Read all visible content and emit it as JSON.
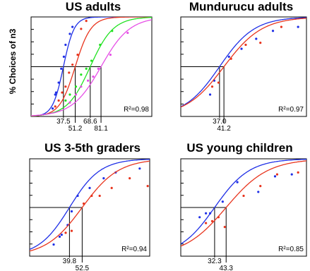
{
  "figure": {
    "ylabel": "% Choices of n3",
    "colors": {
      "blue": "#1f2fe6",
      "red": "#e8341d",
      "green": "#22e222",
      "magenta": "#e64fe6",
      "axis": "#000000"
    }
  },
  "chart_data": [
    {
      "type": "scatter",
      "title": "US adults",
      "r2": "R²=0.98",
      "xlim": [
        0,
        140
      ],
      "ylim": [
        0,
        100
      ],
      "thresholds": [
        {
          "value": 37.5,
          "label": "37.5",
          "row": 1
        },
        {
          "value": 51.2,
          "label": "51.2",
          "row": 2
        },
        {
          "value": 68.6,
          "label": "68.6",
          "row": 1
        },
        {
          "value": 81.1,
          "label": "81.1",
          "row": 2
        }
      ],
      "series": [
        {
          "color": "blue",
          "curve": {
            "mid": 37.5,
            "k": 0.16
          },
          "points": [
            [
              25,
              8
            ],
            [
              28,
              22
            ],
            [
              29,
              24
            ],
            [
              32,
              34
            ],
            [
              35,
              48
            ],
            [
              38,
              60
            ],
            [
              40,
              72
            ],
            [
              45,
              83
            ],
            [
              48,
              90
            ]
          ]
        },
        {
          "color": "red",
          "curve": {
            "mid": 51.2,
            "k": 0.11
          },
          "points": [
            [
              28,
              10
            ],
            [
              32,
              16
            ],
            [
              36,
              24
            ],
            [
              40,
              30
            ],
            [
              44,
              44
            ],
            [
              48,
              52
            ],
            [
              54,
              62
            ],
            [
              58,
              88
            ],
            [
              64,
              96
            ]
          ]
        },
        {
          "color": "green",
          "curve": {
            "mid": 68.6,
            "k": 0.075
          },
          "points": [
            [
              40,
              16
            ],
            [
              45,
              22
            ],
            [
              52,
              30
            ],
            [
              58,
              42
            ],
            [
              64,
              48
            ],
            [
              70,
              56
            ],
            [
              80,
              72
            ],
            [
              94,
              86
            ]
          ]
        },
        {
          "color": "magenta",
          "curve": {
            "mid": 81.1,
            "k": 0.06
          },
          "points": [
            [
              45,
              14
            ],
            [
              52,
              22
            ],
            [
              58,
              30
            ],
            [
              66,
              36
            ],
            [
              72,
              40
            ],
            [
              78,
              48
            ],
            [
              92,
              62
            ],
            [
              112,
              84
            ]
          ]
        }
      ]
    },
    {
      "type": "scatter",
      "title": "Mundurucu adults",
      "r2": "R²=0.97",
      "xlim": [
        0,
        120
      ],
      "ylim": [
        0,
        100
      ],
      "thresholds": [
        {
          "value": 37.0,
          "label": "37.0",
          "row": 1
        },
        {
          "value": 41.2,
          "label": "41.2",
          "row": 2
        }
      ],
      "series": [
        {
          "color": "blue",
          "curve": {
            "mid": 37.0,
            "k": 0.06
          },
          "points": [
            [
              28,
              22
            ],
            [
              32,
              36
            ],
            [
              46,
              60
            ],
            [
              58,
              68
            ],
            [
              72,
              78
            ],
            [
              88,
              86
            ],
            [
              112,
              90
            ]
          ]
        },
        {
          "color": "red",
          "curve": {
            "mid": 41.2,
            "k": 0.055
          },
          "points": [
            [
              30,
              30
            ],
            [
              36,
              34
            ],
            [
              48,
              58
            ],
            [
              62,
              72
            ],
            [
              76,
              74
            ],
            [
              96,
              90
            ]
          ]
        }
      ]
    },
    {
      "type": "scatter",
      "title": "US 3-5th graders",
      "r2": "R²=0.94",
      "xlim": [
        0,
        120
      ],
      "ylim": [
        0,
        100
      ],
      "thresholds": [
        {
          "value": 39.8,
          "label": "39.8",
          "row": 1
        },
        {
          "value": 52.5,
          "label": "52.5",
          "row": 2
        }
      ],
      "series": [
        {
          "color": "blue",
          "curve": {
            "mid": 39.8,
            "k": 0.065
          },
          "points": [
            [
              24,
              12
            ],
            [
              30,
              20
            ],
            [
              32,
              22
            ],
            [
              38,
              32
            ],
            [
              42,
              46
            ],
            [
              48,
              62
            ],
            [
              60,
              70
            ],
            [
              74,
              80
            ],
            [
              86,
              86
            ],
            [
              110,
              90
            ]
          ]
        },
        {
          "color": "red",
          "curve": {
            "mid": 52.5,
            "k": 0.055
          },
          "points": [
            [
              36,
              24
            ],
            [
              42,
              26
            ],
            [
              54,
              54
            ],
            [
              62,
              62
            ],
            [
              70,
              62
            ],
            [
              82,
              70
            ],
            [
              100,
              80
            ],
            [
              118,
              72
            ]
          ]
        }
      ]
    },
    {
      "type": "scatter",
      "title": "US young children",
      "r2": "R²=0.85",
      "xlim": [
        0,
        120
      ],
      "ylim": [
        0,
        100
      ],
      "thresholds": [
        {
          "value": 32.3,
          "label": "32.3",
          "row": 1
        },
        {
          "value": 43.3,
          "label": "43.3",
          "row": 2
        }
      ],
      "series": [
        {
          "color": "blue",
          "curve": {
            "mid": 32.3,
            "k": 0.06
          },
          "points": [
            [
              18,
              40
            ],
            [
              24,
              44
            ],
            [
              28,
              44
            ],
            [
              40,
              56
            ],
            [
              54,
              76
            ],
            [
              74,
              66
            ],
            [
              90,
              82
            ],
            [
              106,
              84
            ]
          ]
        },
        {
          "color": "red",
          "curve": {
            "mid": 43.3,
            "k": 0.05
          },
          "points": [
            [
              24,
              34
            ],
            [
              30,
              36
            ],
            [
              36,
              40
            ],
            [
              42,
              30
            ],
            [
              60,
              62
            ],
            [
              76,
              72
            ],
            [
              92,
              84
            ],
            [
              112,
              86
            ]
          ]
        }
      ]
    }
  ]
}
